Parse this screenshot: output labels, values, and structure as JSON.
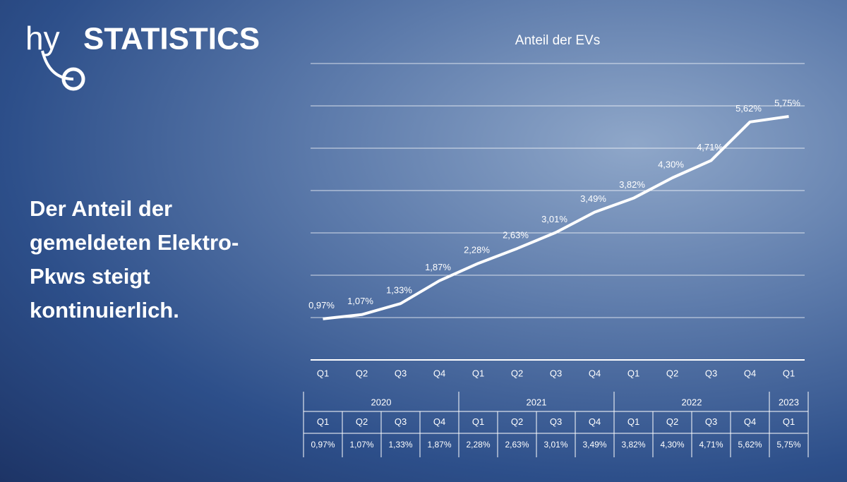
{
  "logo": {
    "prefix": "hy",
    "name": "STATISTICS"
  },
  "headline": "Der Anteil der gemeldeten Elektro-Pkws steigt kontinuierlich.",
  "chart_data": {
    "type": "line",
    "title": "Anteil der EVs",
    "categories": [
      "Q1",
      "Q2",
      "Q3",
      "Q4",
      "Q1",
      "Q2",
      "Q3",
      "Q4",
      "Q1",
      "Q2",
      "Q3",
      "Q4",
      "Q1"
    ],
    "years": [
      "2020",
      "2020",
      "2020",
      "2020",
      "2021",
      "2021",
      "2021",
      "2021",
      "2022",
      "2022",
      "2022",
      "2022",
      "2023"
    ],
    "values": [
      0.97,
      1.07,
      1.33,
      1.87,
      2.28,
      2.63,
      3.01,
      3.49,
      3.82,
      4.3,
      4.71,
      5.62,
      5.75
    ],
    "value_labels": [
      "0,97%",
      "1,07%",
      "1,33%",
      "1,87%",
      "2,28%",
      "2,63%",
      "3,01%",
      "3,49%",
      "3,82%",
      "4,30%",
      "4,71%",
      "5,62%",
      "5,75%"
    ],
    "color": "#ffffff",
    "ylim": [
      0,
      7
    ],
    "yticks": [
      1,
      2,
      3,
      4,
      5,
      6,
      7
    ],
    "grid": true
  }
}
